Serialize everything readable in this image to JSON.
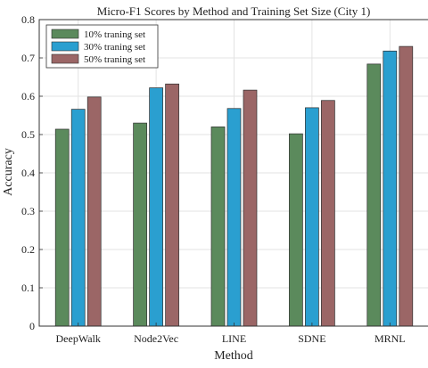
{
  "chart_data": {
    "type": "bar",
    "title": "Micro-F1 Scores by Method and Training Set Size (City 1)",
    "xlabel": "Method",
    "ylabel": "Accuracy",
    "categories": [
      "DeepWalk",
      "Node2Vec",
      "LINE",
      "SDNE",
      "MRNL"
    ],
    "ylim": [
      0,
      0.8
    ],
    "yticks": [
      "0",
      "0.1",
      "0.2",
      "0.3",
      "0.4",
      "0.5",
      "0.6",
      "0.7",
      "0.8"
    ],
    "grid": true,
    "legend_position": "top-left",
    "series": [
      {
        "name": "10% traning set",
        "color": "#5b8a5c",
        "values": [
          0.514,
          0.53,
          0.52,
          0.502,
          0.684
        ]
      },
      {
        "name": "30% traning set",
        "color": "#2a9fd0",
        "values": [
          0.566,
          0.622,
          0.568,
          0.57,
          0.718
        ]
      },
      {
        "name": "50% traning set",
        "color": "#9b6666",
        "values": [
          0.598,
          0.632,
          0.616,
          0.589,
          0.73
        ]
      }
    ]
  }
}
